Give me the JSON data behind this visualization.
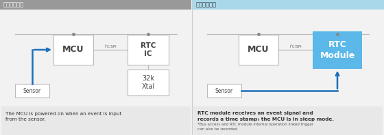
{
  "title_left": "公共电路配置",
  "title_right": "爱普生的提议",
  "bg_left": "#999999",
  "bg_right": "#a8d8ea",
  "title_left_color": "#ffffff",
  "title_right_color": "#333333",
  "panel_bg": "#f2f2f2",
  "box_border": "#bbbbbb",
  "box_bg": "#ffffff",
  "rtc_module_bg": "#5bb8e8",
  "rtc_module_text": "#ffffff",
  "arrow_blue": "#1a6fba",
  "wire_color": "#bbbbbb",
  "dot_color": "#888888",
  "desc_bg": "#e8e8e8",
  "text_desc_left_line1": "The MCU is powered on when an event is input",
  "text_desc_left_line2": "from the sensor.",
  "text_desc_right_bold": "RTC module receives an event signal and\nrecords a time stamp; the MCU is in sleep mode.",
  "text_desc_right_small": "*Bus access and RTC module internal operation linked trigger\ncan also be recorded.",
  "i2c_spi_label": "I²C/SPI"
}
